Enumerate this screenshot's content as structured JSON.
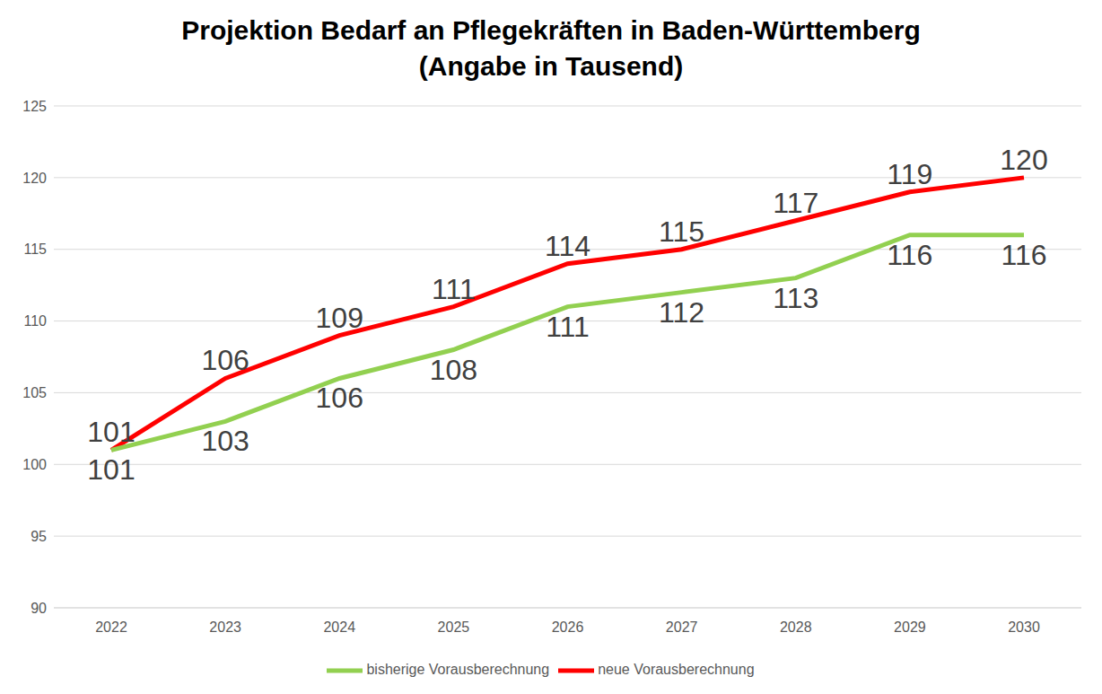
{
  "chart_data": {
    "type": "line",
    "title": "Projektion Bedarf an Pflegekräften in Baden-Württemberg",
    "subtitle": "(Angabe in Tausend)",
    "categories": [
      "2022",
      "2023",
      "2024",
      "2025",
      "2026",
      "2027",
      "2028",
      "2029",
      "2030"
    ],
    "series": [
      {
        "name": "neue Vorausberechnung",
        "color": "#ff0000",
        "values": [
          101,
          106,
          109,
          111,
          114,
          115,
          117,
          119,
          120
        ]
      },
      {
        "name": "bisherige Vorausberechnung",
        "color": "#92d050",
        "values": [
          101,
          103,
          106,
          108,
          111,
          112,
          113,
          116,
          116
        ]
      }
    ],
    "ylim": [
      90,
      125
    ],
    "yticks": [
      90,
      95,
      100,
      105,
      110,
      115,
      120,
      125
    ],
    "grid": true,
    "legend": "bottom",
    "data_labels": true
  }
}
